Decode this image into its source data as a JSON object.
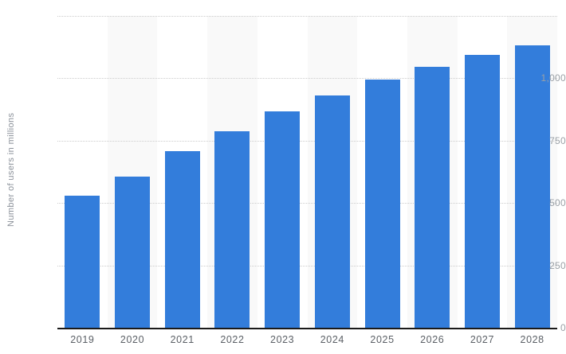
{
  "chart_data": {
    "type": "bar",
    "title": "",
    "categories": [
      "2019",
      "2020",
      "2021",
      "2022",
      "2023",
      "2024",
      "2025",
      "2026",
      "2027",
      "2028"
    ],
    "values": [
      530,
      606,
      708,
      787,
      868,
      932,
      994,
      1046,
      1094,
      1132
    ],
    "xlabel": "",
    "ylabel": "Number of users in millions",
    "ylim": [
      0,
      1250
    ],
    "yticks": {
      "values": [
        0,
        250,
        500,
        750,
        1000
      ],
      "labels": [
        "0",
        "250",
        "500",
        "750",
        "1,000"
      ]
    },
    "grid_values": [
      250,
      500,
      750,
      1000,
      1250
    ],
    "grid_style": "dotted",
    "legend_position": "none",
    "shaded_columns": [
      1,
      3,
      5,
      7,
      9
    ],
    "colors": {
      "bar": "#337ddb",
      "band": "#f9f9f9",
      "grid": "#cccccc",
      "axis_line": "#1a1a1a",
      "y_tick_label": "#9aa0a6",
      "x_tick_label": "#5b6066",
      "y_axis_title": "#8a9099",
      "background": "#ffffff"
    }
  }
}
